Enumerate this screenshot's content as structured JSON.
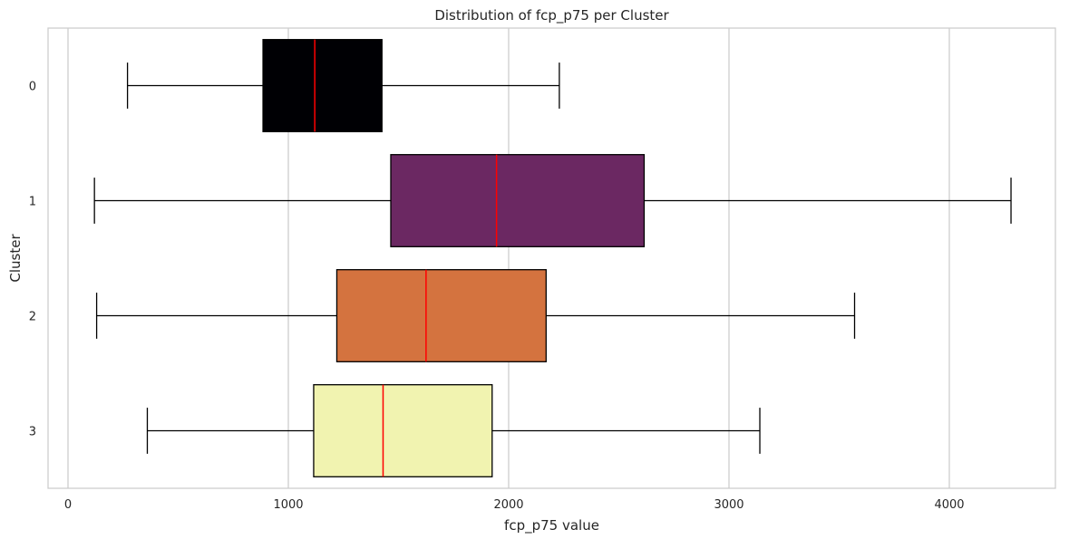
{
  "chart_data": {
    "type": "boxplot",
    "title": "Distribution of fcp_p75 per Cluster",
    "xlabel": "fcp_p75 value",
    "ylabel": "Cluster",
    "xlim": [
      -100,
      4500
    ],
    "x_ticks": [
      0,
      1000,
      2000,
      3000,
      4000
    ],
    "x_tick_labels": [
      "0",
      "1000",
      "2000",
      "3000",
      "4000"
    ],
    "grid": "vertical",
    "orientation": "horizontal",
    "median_color": "#ff0000",
    "categories": [
      "0",
      "1",
      "2",
      "3"
    ],
    "boxes": [
      {
        "cluster": "0",
        "whisker_low": 270,
        "q1": 885,
        "median": 1120,
        "q3": 1425,
        "whisker_high": 2230,
        "color": "#000004"
      },
      {
        "cluster": "1",
        "whisker_low": 120,
        "q1": 1465,
        "median": 1945,
        "q3": 2615,
        "whisker_high": 4280,
        "color": "#6b2862"
      },
      {
        "cluster": "2",
        "whisker_low": 130,
        "q1": 1220,
        "median": 1625,
        "q3": 2170,
        "whisker_high": 3570,
        "color": "#d4733f"
      },
      {
        "cluster": "3",
        "whisker_low": 360,
        "q1": 1115,
        "median": 1430,
        "q3": 1925,
        "whisker_high": 3140,
        "color": "#f1f3b0"
      }
    ]
  }
}
